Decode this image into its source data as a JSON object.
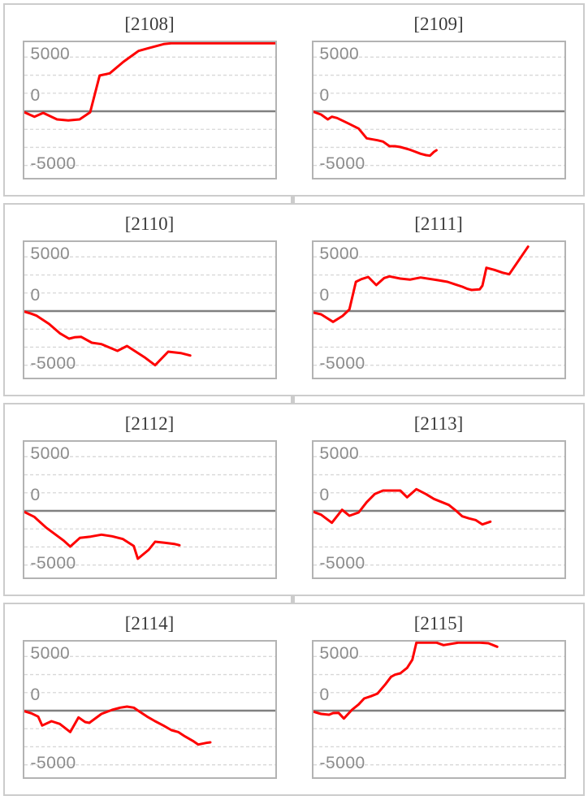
{
  "style": {
    "line_color": "#fe0000",
    "zero_line_color": "#808080",
    "grid_color": "#d8d8d8",
    "plot_border_color": "#b3b3b3",
    "frame_border_color": "#cccccc",
    "label_color": "#8c8c8c",
    "title_color": "#3b3b3b"
  },
  "axis": {
    "tick_labels": [
      "5000",
      "0",
      "-5000"
    ],
    "tick_values": [
      5000,
      0,
      -5000
    ],
    "grid_values": [
      5000,
      3333,
      1667,
      -1667,
      -3333,
      -5000
    ],
    "ymax": 6285,
    "ymin": -6150,
    "grid": "dashed-horizontal",
    "legend": "none"
  },
  "chart_data": [
    {
      "type": "line",
      "title": "[2108]",
      "x_unit": "fraction-of-plot-width",
      "series": [
        [
          0,
          -100
        ],
        [
          0.04,
          -500
        ],
        [
          0.075,
          -150
        ],
        [
          0.13,
          -750
        ],
        [
          0.175,
          -850
        ],
        [
          0.22,
          -750
        ],
        [
          0.262,
          -100
        ],
        [
          0.3,
          3300
        ],
        [
          0.34,
          3500
        ],
        [
          0.395,
          4575
        ],
        [
          0.44,
          5325
        ],
        [
          0.455,
          5575
        ],
        [
          0.49,
          5800
        ],
        [
          0.555,
          6200
        ],
        [
          0.585,
          6380
        ],
        [
          0.61,
          6460
        ],
        [
          0.8,
          6470
        ],
        [
          1.0,
          6470
        ]
      ]
    },
    {
      "type": "line",
      "title": "[2109]",
      "x_unit": "fraction-of-plot-width",
      "series": [
        [
          0,
          -50
        ],
        [
          0.03,
          -300
        ],
        [
          0.057,
          -750
        ],
        [
          0.073,
          -500
        ],
        [
          0.094,
          -625
        ],
        [
          0.137,
          -1100
        ],
        [
          0.18,
          -1600
        ],
        [
          0.212,
          -2500
        ],
        [
          0.255,
          -2675
        ],
        [
          0.277,
          -2800
        ],
        [
          0.303,
          -3225
        ],
        [
          0.325,
          -3225
        ],
        [
          0.346,
          -3300
        ],
        [
          0.384,
          -3550
        ],
        [
          0.427,
          -3925
        ],
        [
          0.448,
          -4050
        ],
        [
          0.464,
          -4100
        ],
        [
          0.48,
          -3750
        ],
        [
          0.49,
          -3600
        ]
      ]
    },
    {
      "type": "line",
      "title": "[2110]",
      "x_unit": "fraction-of-plot-width",
      "series": [
        [
          0,
          -50
        ],
        [
          0.028,
          -250
        ],
        [
          0.049,
          -425
        ],
        [
          0.098,
          -1175
        ],
        [
          0.141,
          -2050
        ],
        [
          0.178,
          -2550
        ],
        [
          0.2,
          -2425
        ],
        [
          0.226,
          -2375
        ],
        [
          0.269,
          -2925
        ],
        [
          0.307,
          -3050
        ],
        [
          0.371,
          -3675
        ],
        [
          0.409,
          -3225
        ],
        [
          0.478,
          -4250
        ],
        [
          0.521,
          -5000
        ],
        [
          0.573,
          -3750
        ],
        [
          0.623,
          -3875
        ],
        [
          0.661,
          -4100
        ]
      ]
    },
    {
      "type": "line",
      "title": "[2111]",
      "x_unit": "fraction-of-plot-width",
      "series": [
        [
          0,
          -150
        ],
        [
          0.03,
          -300
        ],
        [
          0.078,
          -1000
        ],
        [
          0.116,
          -450
        ],
        [
          0.143,
          150
        ],
        [
          0.169,
          2700
        ],
        [
          0.191,
          2950
        ],
        [
          0.218,
          3150
        ],
        [
          0.25,
          2400
        ],
        [
          0.282,
          3050
        ],
        [
          0.303,
          3200
        ],
        [
          0.346,
          3000
        ],
        [
          0.384,
          2900
        ],
        [
          0.427,
          3100
        ],
        [
          0.496,
          2850
        ],
        [
          0.534,
          2700
        ],
        [
          0.566,
          2450
        ],
        [
          0.593,
          2250
        ],
        [
          0.614,
          2050
        ],
        [
          0.63,
          1950
        ],
        [
          0.662,
          2000
        ],
        [
          0.673,
          2350
        ],
        [
          0.689,
          4000
        ],
        [
          0.721,
          3800
        ],
        [
          0.753,
          3550
        ],
        [
          0.78,
          3400
        ],
        [
          0.855,
          5950
        ]
      ]
    },
    {
      "type": "line",
      "title": "[2112]",
      "x_unit": "fraction-of-plot-width",
      "series": [
        [
          0,
          -100
        ],
        [
          0.039,
          -550
        ],
        [
          0.055,
          -875
        ],
        [
          0.087,
          -1550
        ],
        [
          0.157,
          -2750
        ],
        [
          0.183,
          -3300
        ],
        [
          0.221,
          -2500
        ],
        [
          0.264,
          -2375
        ],
        [
          0.307,
          -2200
        ],
        [
          0.35,
          -2350
        ],
        [
          0.393,
          -2600
        ],
        [
          0.436,
          -3250
        ],
        [
          0.452,
          -4425
        ],
        [
          0.495,
          -3600
        ],
        [
          0.521,
          -2850
        ],
        [
          0.559,
          -2950
        ],
        [
          0.597,
          -3050
        ],
        [
          0.618,
          -3175
        ]
      ]
    },
    {
      "type": "line",
      "title": "[2113]",
      "x_unit": "fraction-of-plot-width",
      "series": [
        [
          0,
          -100
        ],
        [
          0.03,
          -350
        ],
        [
          0.073,
          -1100
        ],
        [
          0.114,
          100
        ],
        [
          0.143,
          -450
        ],
        [
          0.18,
          -150
        ],
        [
          0.212,
          800
        ],
        [
          0.244,
          1550
        ],
        [
          0.277,
          1875
        ],
        [
          0.346,
          1875
        ],
        [
          0.373,
          1250
        ],
        [
          0.41,
          2000
        ],
        [
          0.448,
          1550
        ],
        [
          0.48,
          1100
        ],
        [
          0.512,
          800
        ],
        [
          0.539,
          550
        ],
        [
          0.566,
          50
        ],
        [
          0.593,
          -500
        ],
        [
          0.62,
          -700
        ],
        [
          0.646,
          -850
        ],
        [
          0.673,
          -1250
        ],
        [
          0.705,
          -1000
        ]
      ]
    },
    {
      "type": "line",
      "title": "[2114]",
      "x_unit": "fraction-of-plot-width",
      "series": [
        [
          0,
          -50
        ],
        [
          0.028,
          -250
        ],
        [
          0.055,
          -550
        ],
        [
          0.071,
          -1375
        ],
        [
          0.108,
          -975
        ],
        [
          0.141,
          -1225
        ],
        [
          0.183,
          -1975
        ],
        [
          0.216,
          -625
        ],
        [
          0.242,
          -1050
        ],
        [
          0.259,
          -1125
        ],
        [
          0.307,
          -300
        ],
        [
          0.35,
          75
        ],
        [
          0.382,
          275
        ],
        [
          0.409,
          375
        ],
        [
          0.436,
          275
        ],
        [
          0.457,
          -50
        ],
        [
          0.489,
          -550
        ],
        [
          0.521,
          -975
        ],
        [
          0.554,
          -1375
        ],
        [
          0.586,
          -1800
        ],
        [
          0.613,
          -1975
        ],
        [
          0.64,
          -2375
        ],
        [
          0.672,
          -2800
        ],
        [
          0.693,
          -3125
        ],
        [
          0.725,
          -2975
        ],
        [
          0.741,
          -2925
        ]
      ]
    },
    {
      "type": "line",
      "title": "[2115]",
      "x_unit": "fraction-of-plot-width",
      "series": [
        [
          0,
          -100
        ],
        [
          0.03,
          -300
        ],
        [
          0.062,
          -375
        ],
        [
          0.078,
          -225
        ],
        [
          0.1,
          -200
        ],
        [
          0.121,
          -725
        ],
        [
          0.153,
          75
        ],
        [
          0.18,
          575
        ],
        [
          0.202,
          1125
        ],
        [
          0.228,
          1325
        ],
        [
          0.255,
          1575
        ],
        [
          0.287,
          2450
        ],
        [
          0.309,
          3125
        ],
        [
          0.325,
          3325
        ],
        [
          0.346,
          3450
        ],
        [
          0.373,
          3950
        ],
        [
          0.394,
          4700
        ],
        [
          0.41,
          6275
        ],
        [
          0.491,
          6450
        ],
        [
          0.518,
          6050
        ],
        [
          0.577,
          6350
        ],
        [
          0.62,
          6475
        ],
        [
          0.662,
          6450
        ],
        [
          0.697,
          6225
        ],
        [
          0.732,
          5900
        ]
      ]
    }
  ]
}
